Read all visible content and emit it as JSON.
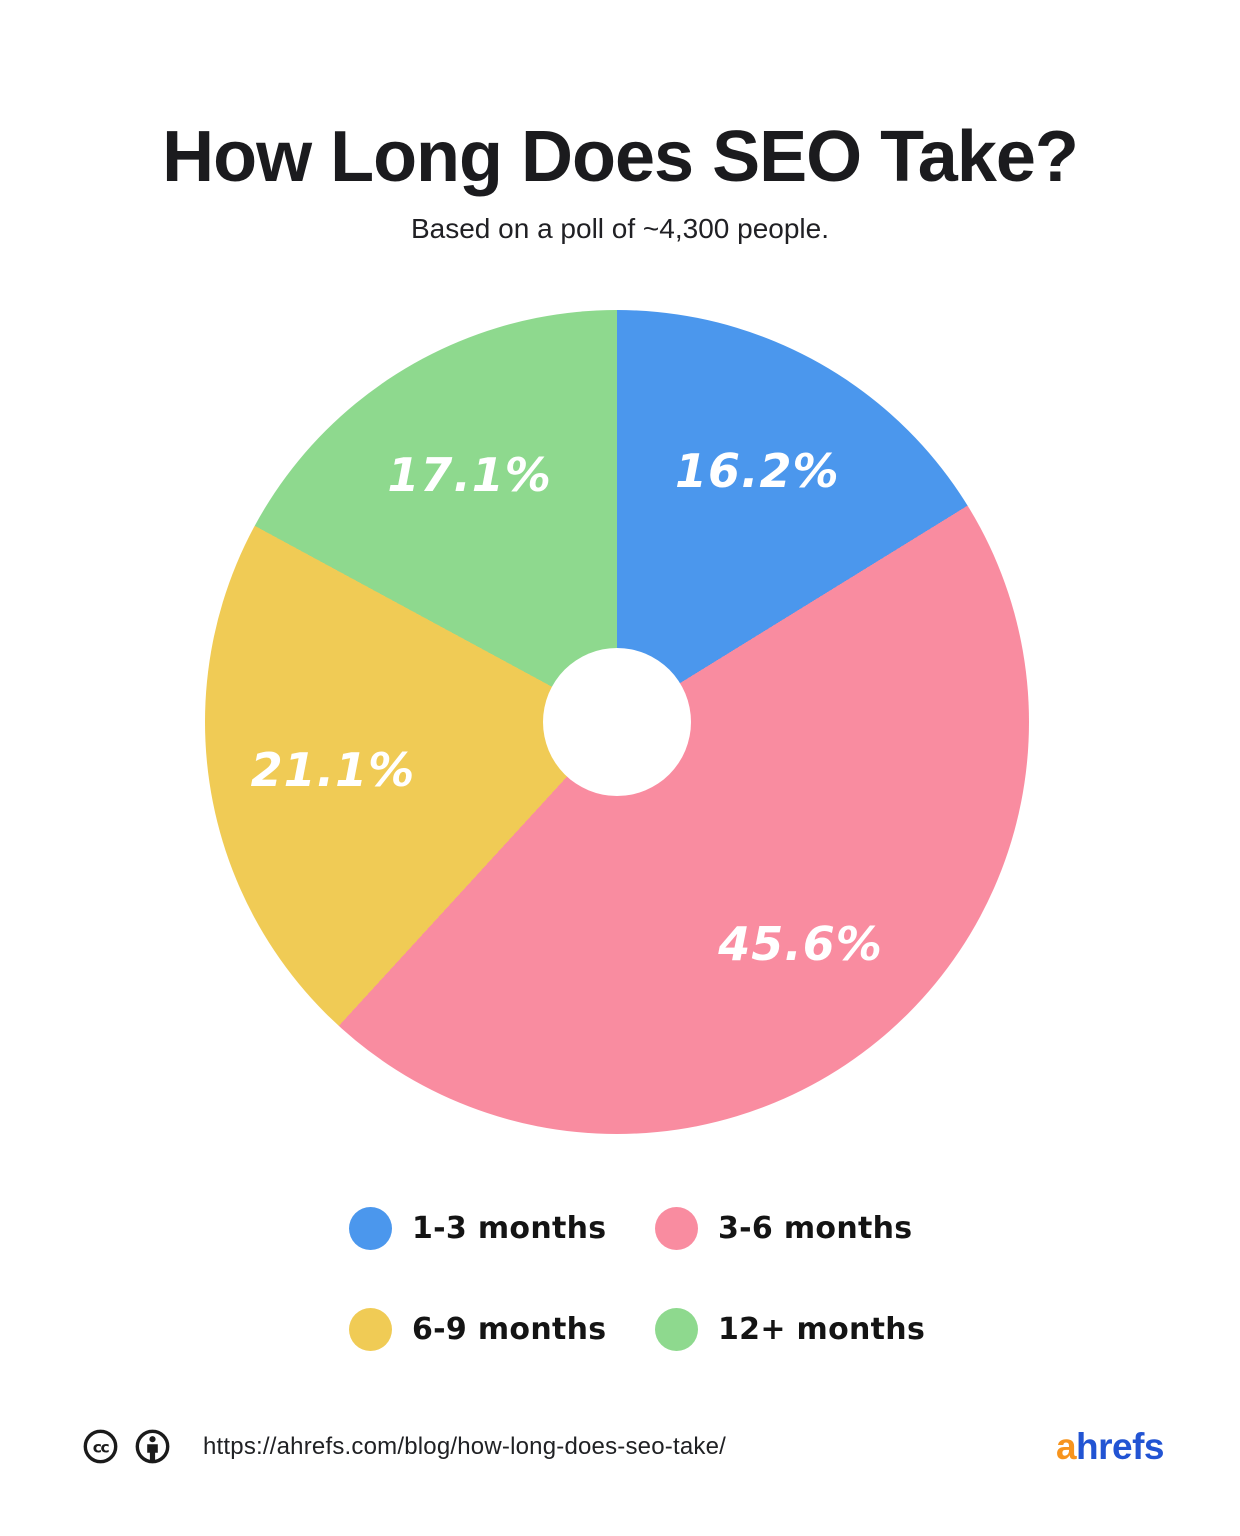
{
  "page": {
    "title": "How Long Does SEO Take?",
    "subtitle": "Based on a poll of ~4,300 people."
  },
  "chart_data": {
    "type": "pie",
    "donut": true,
    "title": "How Long Does SEO Take?",
    "subtitle": "Based on a poll of ~4,300 people.",
    "start_angle_deg": 0,
    "direction": "clockwise",
    "categories": [
      "1-3 months",
      "3-6 months",
      "6-9 months",
      "12+ months"
    ],
    "values": [
      16.2,
      45.6,
      21.1,
      17.1
    ],
    "slice_labels": [
      "16.2%",
      "45.6%",
      "21.1%",
      "17.1%"
    ],
    "colors": [
      "#4B97ED",
      "#F98CA0",
      "#F0CB55",
      "#8ED98E"
    ],
    "slice_label_color": "#FFFFFF",
    "legend_position": "bottom"
  },
  "legend": {
    "items": [
      {
        "label": "1-3 months",
        "color": "#4B97ED"
      },
      {
        "label": "3-6 months",
        "color": "#F98CA0"
      },
      {
        "label": "6-9 months",
        "color": "#F0CB55"
      },
      {
        "label": "12+ months",
        "color": "#8ED98E"
      }
    ]
  },
  "footer": {
    "url": "https://ahrefs.com/blog/how-long-does-seo-take/",
    "license": "cc-by",
    "logo_prefix": "a",
    "logo_suffix": "hrefs",
    "logo_prefix_color": "#F7941D",
    "logo_suffix_color": "#2254D3"
  }
}
